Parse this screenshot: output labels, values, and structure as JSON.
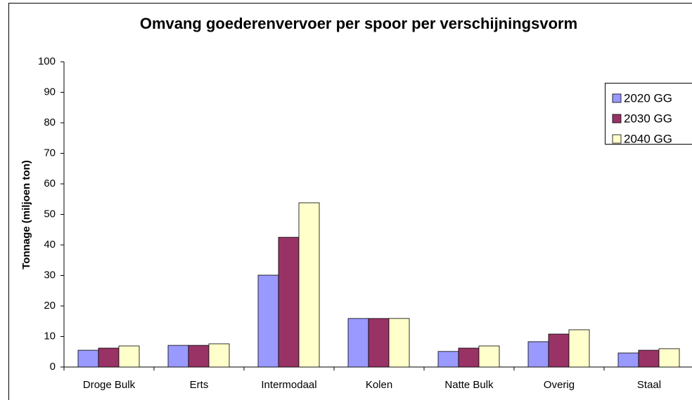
{
  "chart_data": {
    "type": "bar",
    "title": "Omvang goederenvervoer per spoor per verschijningsvorm",
    "y_label": "Tonnage (miljoen ton)",
    "categories": [
      "Droge Bulk",
      "Erts",
      "Intermodaal",
      "Kolen",
      "Natte Bulk",
      "Overig",
      "Staal"
    ],
    "series": [
      {
        "name": "2020 GG",
        "color": "#9999ff",
        "values": [
          5.5,
          7.1,
          30.1,
          15.9,
          5.1,
          8.3,
          4.6
        ]
      },
      {
        "name": "2030 GG",
        "color": "#993366",
        "values": [
          6.2,
          7.1,
          42.5,
          15.9,
          6.2,
          10.8,
          5.5
        ]
      },
      {
        "name": "2040 GG",
        "color": "#ffffcc",
        "values": [
          6.9,
          7.6,
          53.8,
          15.9,
          6.9,
          12.2,
          6.0
        ]
      }
    ],
    "ylim": [
      0,
      100
    ],
    "yticks": [
      0,
      10,
      20,
      30,
      40,
      50,
      60,
      70,
      80,
      90,
      100
    ],
    "grid": false,
    "legend": "top-right"
  }
}
